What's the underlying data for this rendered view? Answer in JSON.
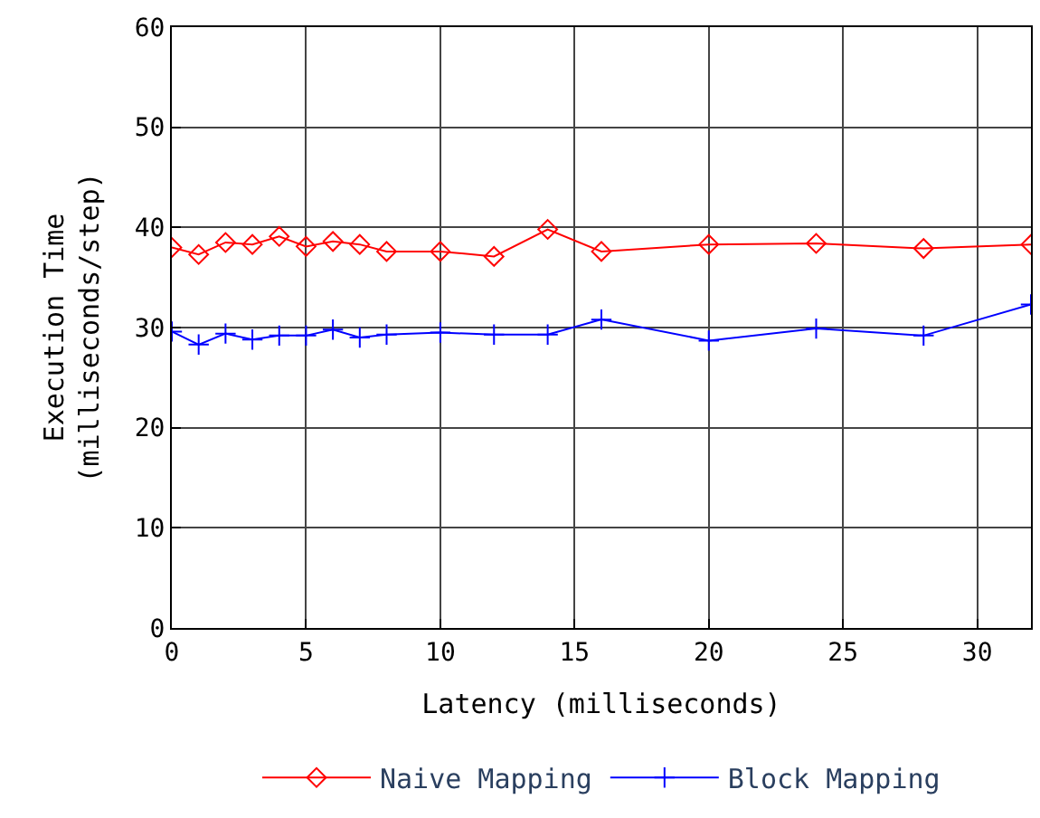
{
  "chart_data": {
    "type": "line",
    "xlabel": "Latency (milliseconds)",
    "ylabel": "Execution Time\n(milliseconds/step)",
    "x": [
      0,
      1,
      2,
      3,
      4,
      5,
      6,
      7,
      8,
      10,
      12,
      14,
      16,
      20,
      24,
      28,
      32
    ],
    "series": [
      {
        "name": "Naive Mapping",
        "color": "#ff0000",
        "marker": "diamond",
        "values": [
          38.0,
          37.3,
          38.5,
          38.3,
          39.1,
          38.1,
          38.6,
          38.3,
          37.6,
          37.6,
          37.1,
          39.8,
          37.6,
          38.3,
          38.4,
          37.9,
          38.3
        ]
      },
      {
        "name": "Block Mapping",
        "color": "#0000ff",
        "marker": "cross",
        "values": [
          29.6,
          28.3,
          29.4,
          28.8,
          29.2,
          29.2,
          29.8,
          29.0,
          29.3,
          29.5,
          29.3,
          29.3,
          30.8,
          28.7,
          29.9,
          29.2,
          32.3
        ]
      }
    ],
    "xlim": [
      0,
      32
    ],
    "xticks": [
      0,
      5,
      10,
      15,
      20,
      25,
      30
    ],
    "ylim": [
      0,
      60
    ],
    "yticks": [
      0,
      10,
      20,
      30,
      40,
      50,
      60
    ],
    "grid": true,
    "legend": "bottom",
    "line_style": "solid"
  }
}
